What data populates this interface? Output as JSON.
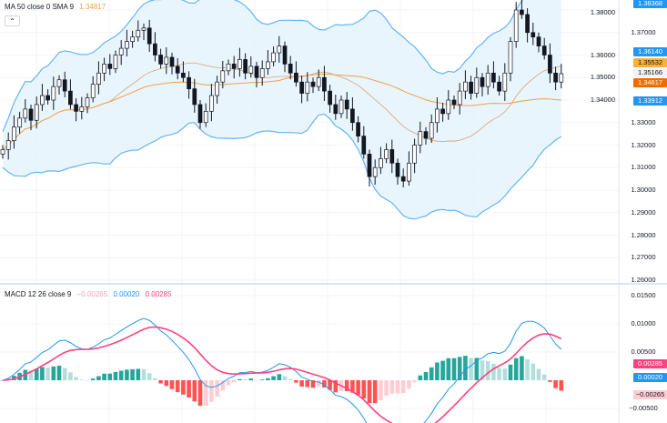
{
  "legend_main": {
    "name": "MA 50 close 0 SMA 9",
    "value": "1.34817"
  },
  "legend_macd": {
    "name": "MACD 12 26 close 9",
    "histogram": "−0.00265",
    "macd": "0.00020",
    "signal": "0.00285"
  },
  "collapse_icon": "chevron-up-icon",
  "chart_data": [
    {
      "type": "candlestick",
      "series": "price with MA 50 and Bollinger Bands",
      "yticks": [
        "1.38000",
        "1.37000",
        "1.36000",
        "1.35000",
        "1.34000",
        "1.33000",
        "1.32000",
        "1.31000",
        "1.30000",
        "1.29000",
        "1.28000",
        "1.27000",
        "1.26000"
      ],
      "ylim": [
        1.26,
        1.384
      ],
      "close": [
        1.318,
        1.322,
        1.328,
        1.332,
        1.336,
        1.331,
        1.338,
        1.342,
        1.34,
        1.346,
        1.349,
        1.344,
        1.338,
        1.335,
        1.337,
        1.341,
        1.347,
        1.352,
        1.356,
        1.354,
        1.36,
        1.363,
        1.366,
        1.368,
        1.371,
        1.372,
        1.365,
        1.36,
        1.356,
        1.359,
        1.355,
        1.352,
        1.35,
        1.345,
        1.338,
        1.33,
        1.335,
        1.342,
        1.348,
        1.353,
        1.356,
        1.354,
        1.358,
        1.352,
        1.355,
        1.35,
        1.354,
        1.357,
        1.361,
        1.364,
        1.356,
        1.352,
        1.348,
        1.343,
        1.348,
        1.346,
        1.35,
        1.344,
        1.338,
        1.334,
        1.34,
        1.336,
        1.33,
        1.324,
        1.316,
        1.306,
        1.31,
        1.314,
        1.318,
        1.312,
        1.306,
        1.304,
        1.312,
        1.32,
        1.326,
        1.323,
        1.33,
        1.336,
        1.334,
        1.34,
        1.338,
        1.344,
        1.348,
        1.343,
        1.35,
        1.346,
        1.352,
        1.348,
        1.344,
        1.352,
        1.366,
        1.38,
        1.378,
        1.37,
        1.368,
        1.364,
        1.36,
        1.352,
        1.348,
        1.3517
      ],
      "price_tags": [
        {
          "value": "1.38368",
          "bg": "#2196f3",
          "fg": "#ffffff"
        },
        {
          "value": "1.36140",
          "bg": "#2196f3",
          "fg": "#ffffff"
        },
        {
          "value": "1.35532",
          "bg": "#f9b234",
          "fg": "#131722"
        },
        {
          "value": "1.35166",
          "bg": "#f0f3fa",
          "fg": "#131722"
        },
        {
          "value": "1.34817",
          "bg": "#ef6c00",
          "fg": "#ffffff"
        },
        {
          "value": "1.33912",
          "bg": "#2196f3",
          "fg": "#ffffff"
        }
      ]
    },
    {
      "type": "macd",
      "yticks": [
        "0.01500",
        "0.01000",
        "0.00500",
        "-0.00500"
      ],
      "ylim": [
        -0.0075,
        0.016
      ],
      "tags": [
        {
          "value": "0.00285",
          "bg": "#ff4081",
          "fg": "#ffffff"
        },
        {
          "value": "0.00020",
          "bg": "#2196f3",
          "fg": "#ffffff"
        },
        {
          "value": "−0.00265",
          "bg": "#ffcdd2",
          "fg": "#131722"
        }
      ]
    }
  ],
  "colors": {
    "band": "#64b5f6",
    "band_fill": "#e3f2fd",
    "ma": "#f0a04b",
    "basis": "#d4a373",
    "macd": "#2196f3",
    "signal": "#ff4081",
    "hist_up": "#26a69a",
    "hist_up_light": "#b2dfdb",
    "hist_down": "#ff5252",
    "hist_down_light": "#ffcdd2"
  }
}
